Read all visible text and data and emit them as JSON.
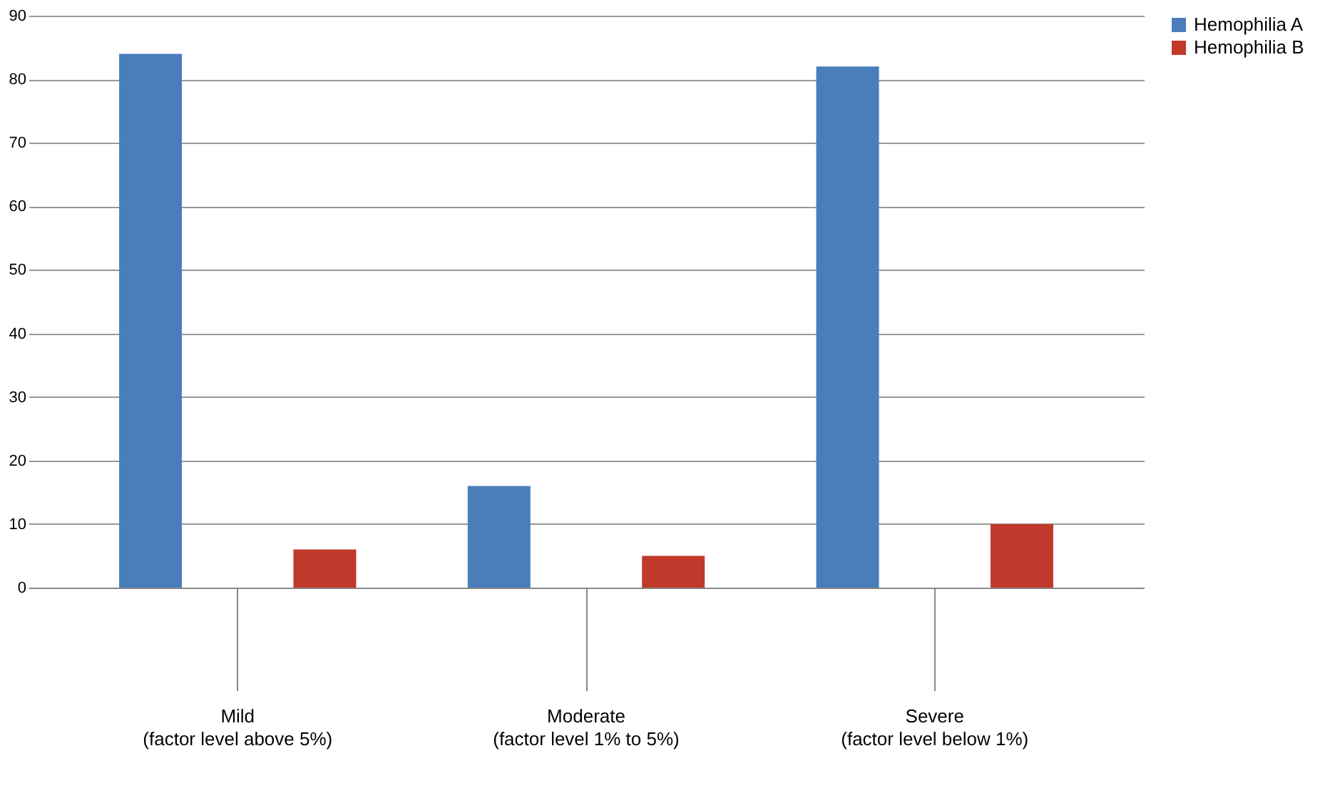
{
  "chart_data": {
    "type": "bar",
    "categories": [
      "Mild\n\n(factor level above 5%)",
      "Moderate\n\n(factor level 1% to 5%)",
      "Severe\n\n(factor level below 1%)"
    ],
    "series": [
      {
        "name": "Hemophilia A",
        "color": "#4a7ebb",
        "values": [
          84,
          16,
          82
        ]
      },
      {
        "name": "Hemophilia B",
        "color": "#c0392b",
        "values": [
          6,
          5,
          10
        ]
      }
    ],
    "ylim": [
      0,
      90
    ],
    "yticks": [
      0,
      10,
      20,
      30,
      40,
      50,
      60,
      70,
      80,
      90
    ],
    "grid": "y",
    "legend": "right"
  }
}
